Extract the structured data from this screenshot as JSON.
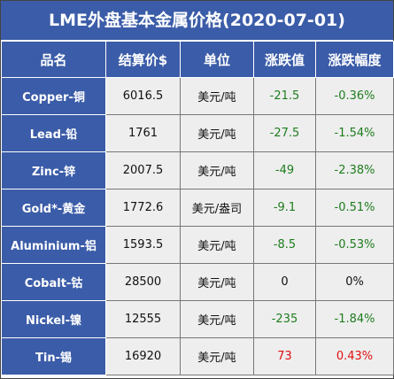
{
  "title": "LME外盘基本金属价格(2020-07-01)",
  "table": {
    "header": [
      "品名",
      "结算价$",
      "单位",
      "涨跌值",
      "涨跌幅度"
    ],
    "rows": [
      [
        "Copper-铜",
        "6016.5",
        "美元/吨",
        "-21.5",
        "-0.36%"
      ],
      [
        "Lead-铅",
        "1761",
        "美元/吨",
        "-27.5",
        "-1.54%"
      ],
      [
        "Zinc-锌",
        "2007.5",
        "美元/吨",
        "-49",
        "-2.38%"
      ],
      [
        "Gold*-黄金",
        "1772.6",
        "美元/盎司",
        "-9.1",
        "-0.51%"
      ],
      [
        "Aluminium-铝",
        "1593.5",
        "美元/吨",
        "-8.5",
        "-0.53%"
      ],
      [
        "Cobalt-钴",
        "28500",
        "美元/吨",
        "0",
        "0%"
      ],
      [
        "Nickel-镍",
        "12555",
        "美元/吨",
        "-235",
        "-1.84%"
      ],
      [
        "Tin-锡",
        "16920",
        "美元/吨",
        "73",
        "0.43%"
      ]
    ]
  }
}
